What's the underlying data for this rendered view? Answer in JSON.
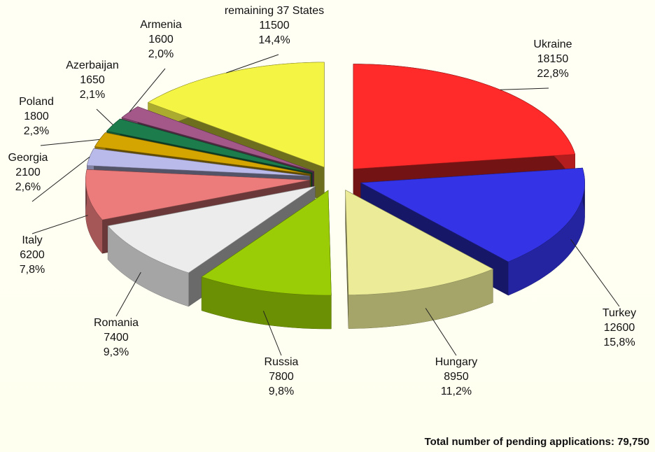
{
  "chart_data": {
    "type": "pie3d",
    "categories": [
      "Ukraine",
      "Turkey",
      "Hungary",
      "Russia",
      "Romania",
      "Italy",
      "Georgia",
      "Poland",
      "Azerbaijan",
      "Armenia",
      "remaining 37 States"
    ],
    "values": [
      18150,
      12600,
      8950,
      7800,
      7400,
      6200,
      2100,
      1800,
      1650,
      1600,
      11500
    ],
    "share_labels": [
      "22,8%",
      "15,8%",
      "11,2%",
      "9,8%",
      "9,3%",
      "7,8%",
      "2,6%",
      "2,3%",
      "2,1%",
      "2,0%",
      "14,4%"
    ],
    "colors": [
      "#ff2a2a",
      "#3434e6",
      "#ecec98",
      "#9acd05",
      "#ececec",
      "#ec7c7c",
      "#babaea",
      "#d4a400",
      "#1c7c4c",
      "#a4588a",
      "#f4f444"
    ],
    "footnote": "Total number of pending applications:  79,750"
  }
}
